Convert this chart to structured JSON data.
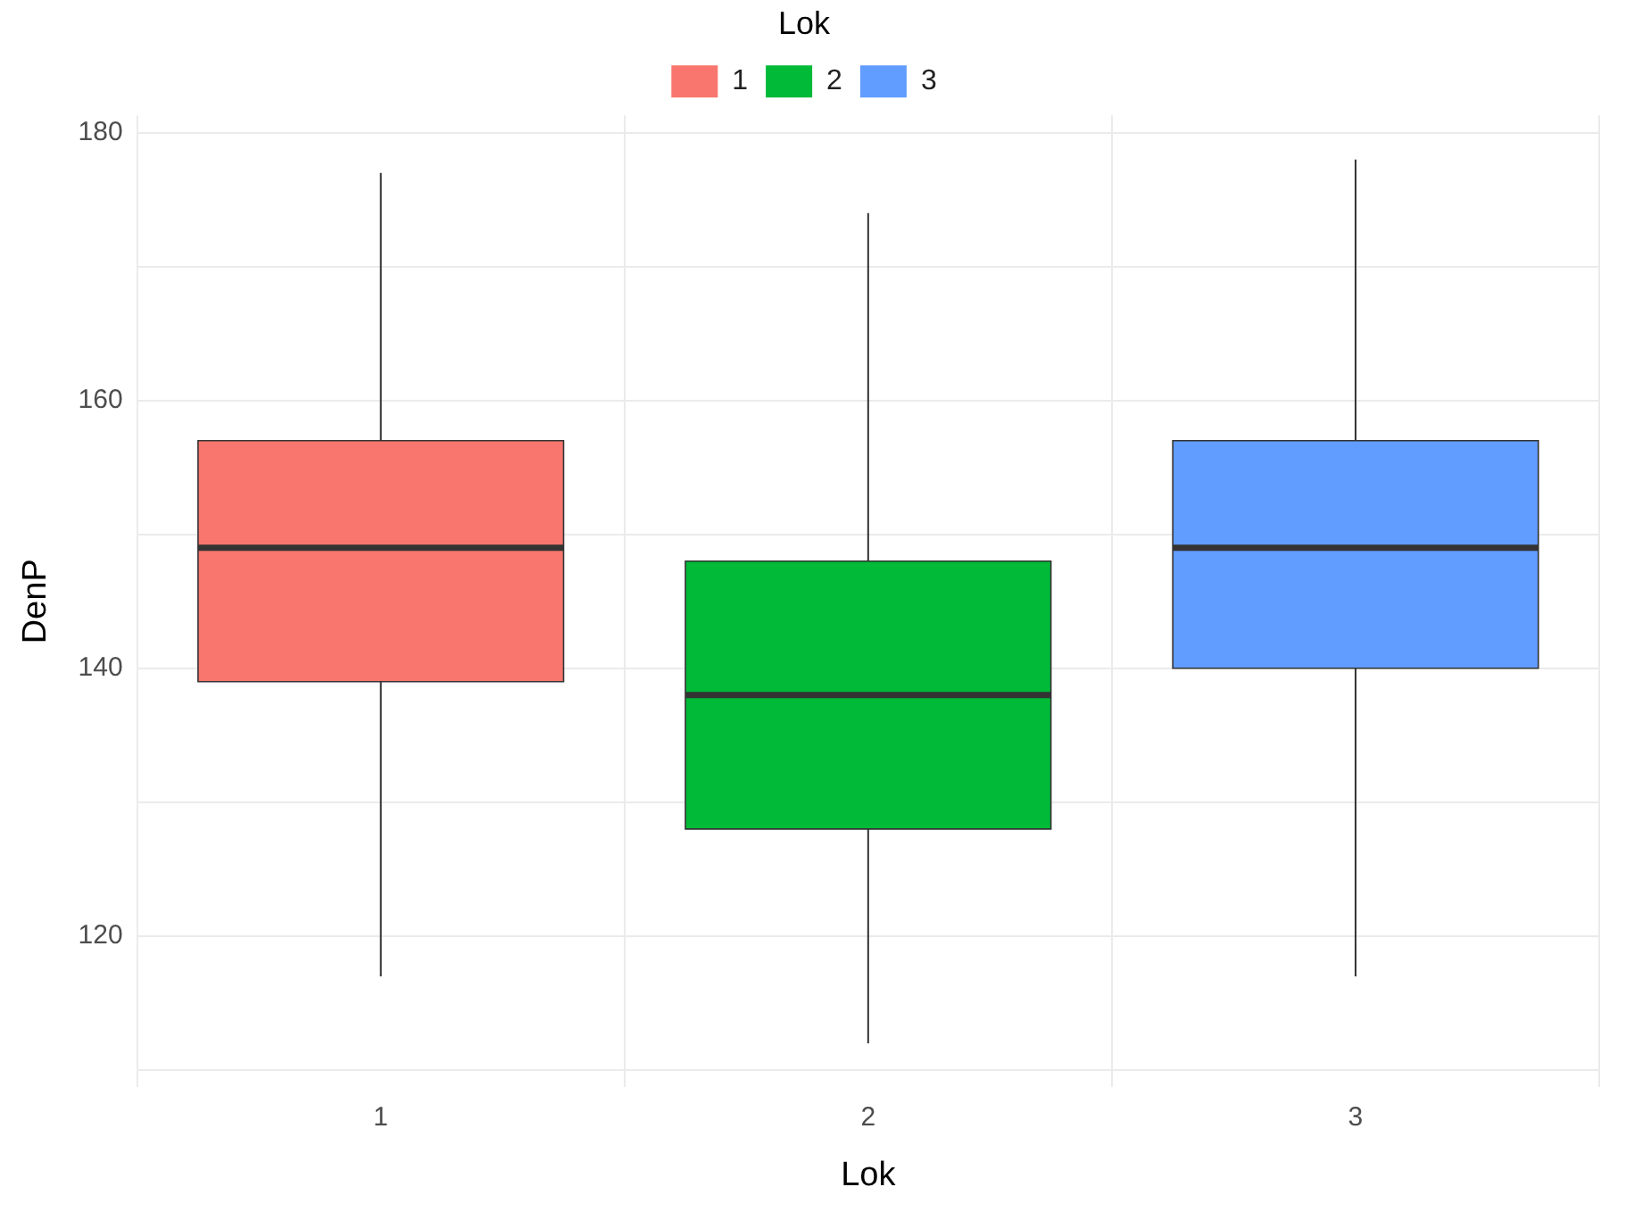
{
  "chart_data": {
    "type": "box",
    "xlabel": "Lok",
    "ylabel": "DenP",
    "legend_title": "Lok",
    "legend": "top",
    "grid": true,
    "categories": [
      "1",
      "2",
      "3"
    ],
    "series": [
      {
        "name": "1",
        "color": "#f8766d",
        "boxes": [
          {
            "low": 117,
            "q1": 139,
            "median": 149,
            "q3": 157,
            "high": 177
          },
          null,
          null
        ]
      },
      {
        "name": "2",
        "color": "#00ba38",
        "boxes": [
          null,
          {
            "low": 112,
            "q1": 128,
            "median": 138,
            "q3": 148,
            "high": 174
          },
          null
        ]
      },
      {
        "name": "3",
        "color": "#619cff",
        "boxes": [
          null,
          null,
          {
            "low": 117,
            "q1": 140,
            "median": 149,
            "q3": 157,
            "high": 178
          }
        ]
      }
    ],
    "ylim": [
      108.7,
      181.3
    ],
    "yticks": [
      {
        "value": 110,
        "label": null
      },
      120,
      {
        "value": 130,
        "label": null
      },
      140,
      {
        "value": 150,
        "label": null
      },
      160,
      {
        "value": 170,
        "label": null
      },
      180
    ]
  }
}
